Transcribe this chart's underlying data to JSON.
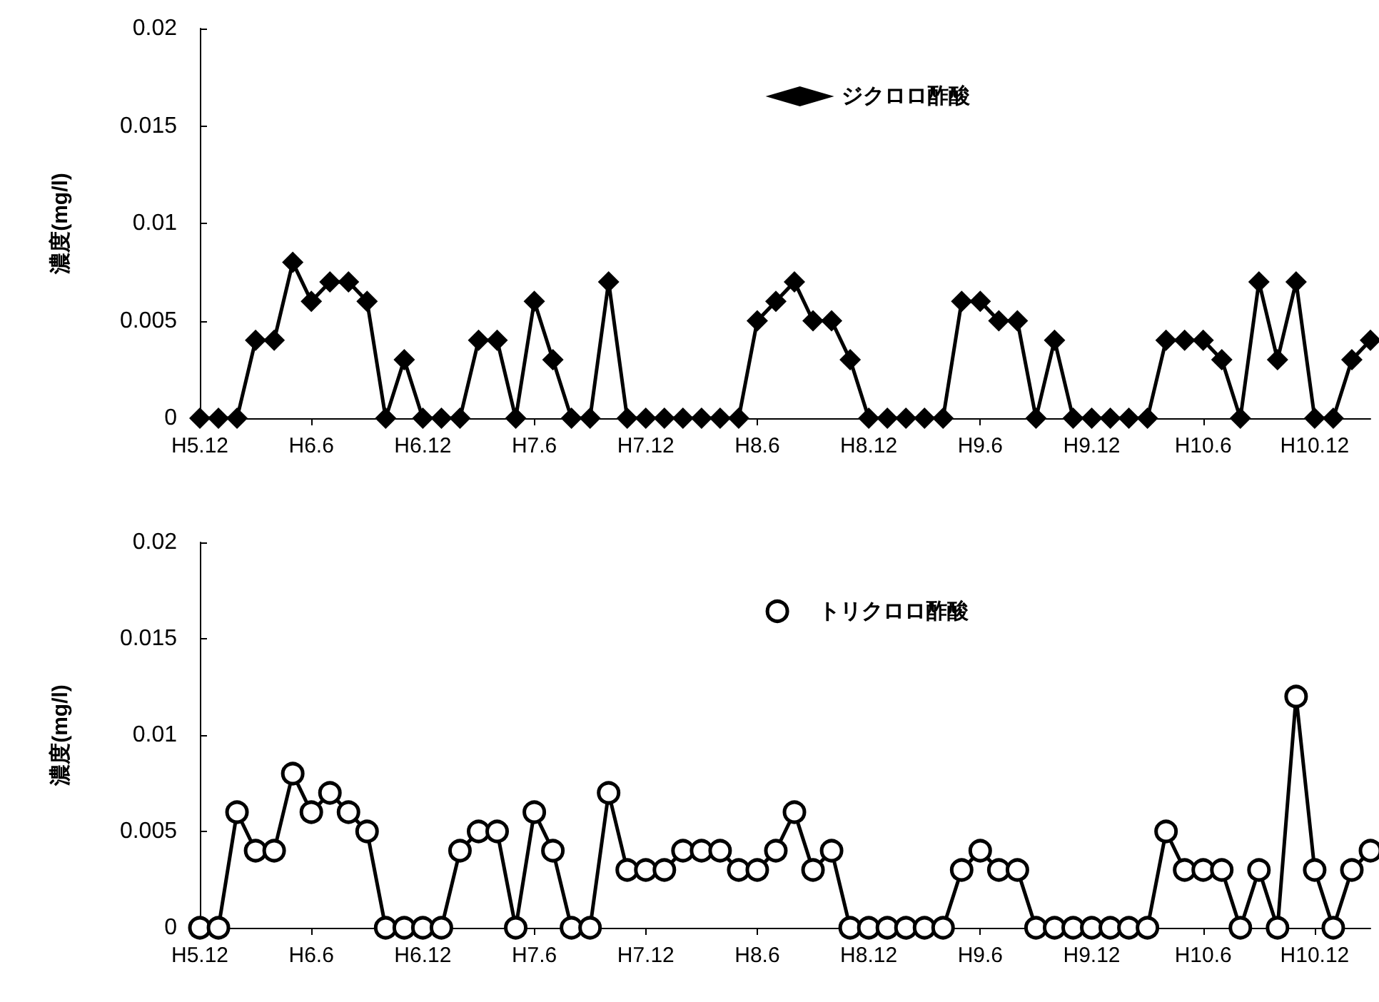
{
  "chart_data": [
    {
      "type": "line",
      "ylabel": "濃度(mg/l)",
      "categories": [
        "H5.12",
        null,
        null,
        null,
        null,
        null,
        "H6.6",
        null,
        null,
        null,
        null,
        null,
        "H6.12",
        null,
        null,
        null,
        null,
        null,
        "H7.6",
        null,
        null,
        null,
        null,
        null,
        "H7.12",
        null,
        null,
        null,
        null,
        null,
        "H8.6",
        null,
        null,
        null,
        null,
        null,
        "H8.12",
        null,
        null,
        null,
        null,
        null,
        "H9.6",
        null,
        null,
        null,
        null,
        null,
        "H9.12",
        null,
        null,
        null,
        null,
        null,
        "H10.6",
        null,
        null,
        null,
        null,
        null,
        "H10.12",
        null,
        null,
        null
      ],
      "series": [
        {
          "name": "ジクロロ酢酸",
          "color": "#000000",
          "marker": "diamond",
          "values": [
            0,
            0,
            0,
            0.004,
            0.004,
            0.008,
            0.006,
            0.007,
            0.007,
            0.006,
            0,
            0.003,
            0,
            0,
            0,
            0.004,
            0.004,
            0,
            0.006,
            0.003,
            0,
            0,
            0.007,
            0,
            0,
            0,
            0,
            0,
            0,
            0,
            0.005,
            0.006,
            0.007,
            0.005,
            0.005,
            0.003,
            0,
            0,
            0,
            0,
            0,
            0.006,
            0.006,
            0.005,
            0.005,
            0,
            0.004,
            0,
            0,
            0,
            0,
            0,
            0.004,
            0.004,
            0.004,
            0.003,
            0,
            0.007,
            0.003,
            0.007,
            0,
            0,
            0.003,
            0.004
          ]
        }
      ],
      "ylim": [
        0,
        0.02
      ],
      "yticks": [
        0,
        0.005,
        0.01,
        0.015,
        0.02
      ],
      "grid": false,
      "legend": "top"
    },
    {
      "type": "line",
      "ylabel": "濃度(mg/l)",
      "categories": [
        "H5.12",
        null,
        null,
        null,
        null,
        null,
        "H6.6",
        null,
        null,
        null,
        null,
        null,
        "H6.12",
        null,
        null,
        null,
        null,
        null,
        "H7.6",
        null,
        null,
        null,
        null,
        null,
        "H7.12",
        null,
        null,
        null,
        null,
        null,
        "H8.6",
        null,
        null,
        null,
        null,
        null,
        "H8.12",
        null,
        null,
        null,
        null,
        null,
        "H9.6",
        null,
        null,
        null,
        null,
        null,
        "H9.12",
        null,
        null,
        null,
        null,
        null,
        "H10.6",
        null,
        null,
        null,
        null,
        null,
        "H10.12",
        null,
        null,
        null
      ],
      "series": [
        {
          "name": "トリクロロ酢酸",
          "color": "#000000",
          "marker": "circle",
          "values": [
            0,
            0,
            0.006,
            0.004,
            0.004,
            0.008,
            0.006,
            0.007,
            0.006,
            0.005,
            0,
            0,
            0,
            0,
            0.004,
            0.005,
            0.005,
            0,
            0.006,
            0.004,
            0,
            0,
            0.007,
            0.003,
            0.003,
            0.003,
            0.004,
            0.004,
            0.004,
            0.003,
            0.003,
            0.004,
            0.006,
            0.003,
            0.004,
            0,
            0,
            0,
            0,
            0,
            0,
            0.003,
            0.004,
            0.003,
            0.003,
            0,
            0,
            0,
            0,
            0,
            0,
            0,
            0.005,
            0.003,
            0.003,
            0.003,
            0,
            0.003,
            0,
            0.012,
            0.003,
            0,
            0.003,
            0.004
          ]
        }
      ],
      "ylim": [
        0,
        0.02
      ],
      "yticks": [
        0,
        0.005,
        0.01,
        0.015,
        0.02
      ],
      "grid": false,
      "legend": "top"
    }
  ]
}
